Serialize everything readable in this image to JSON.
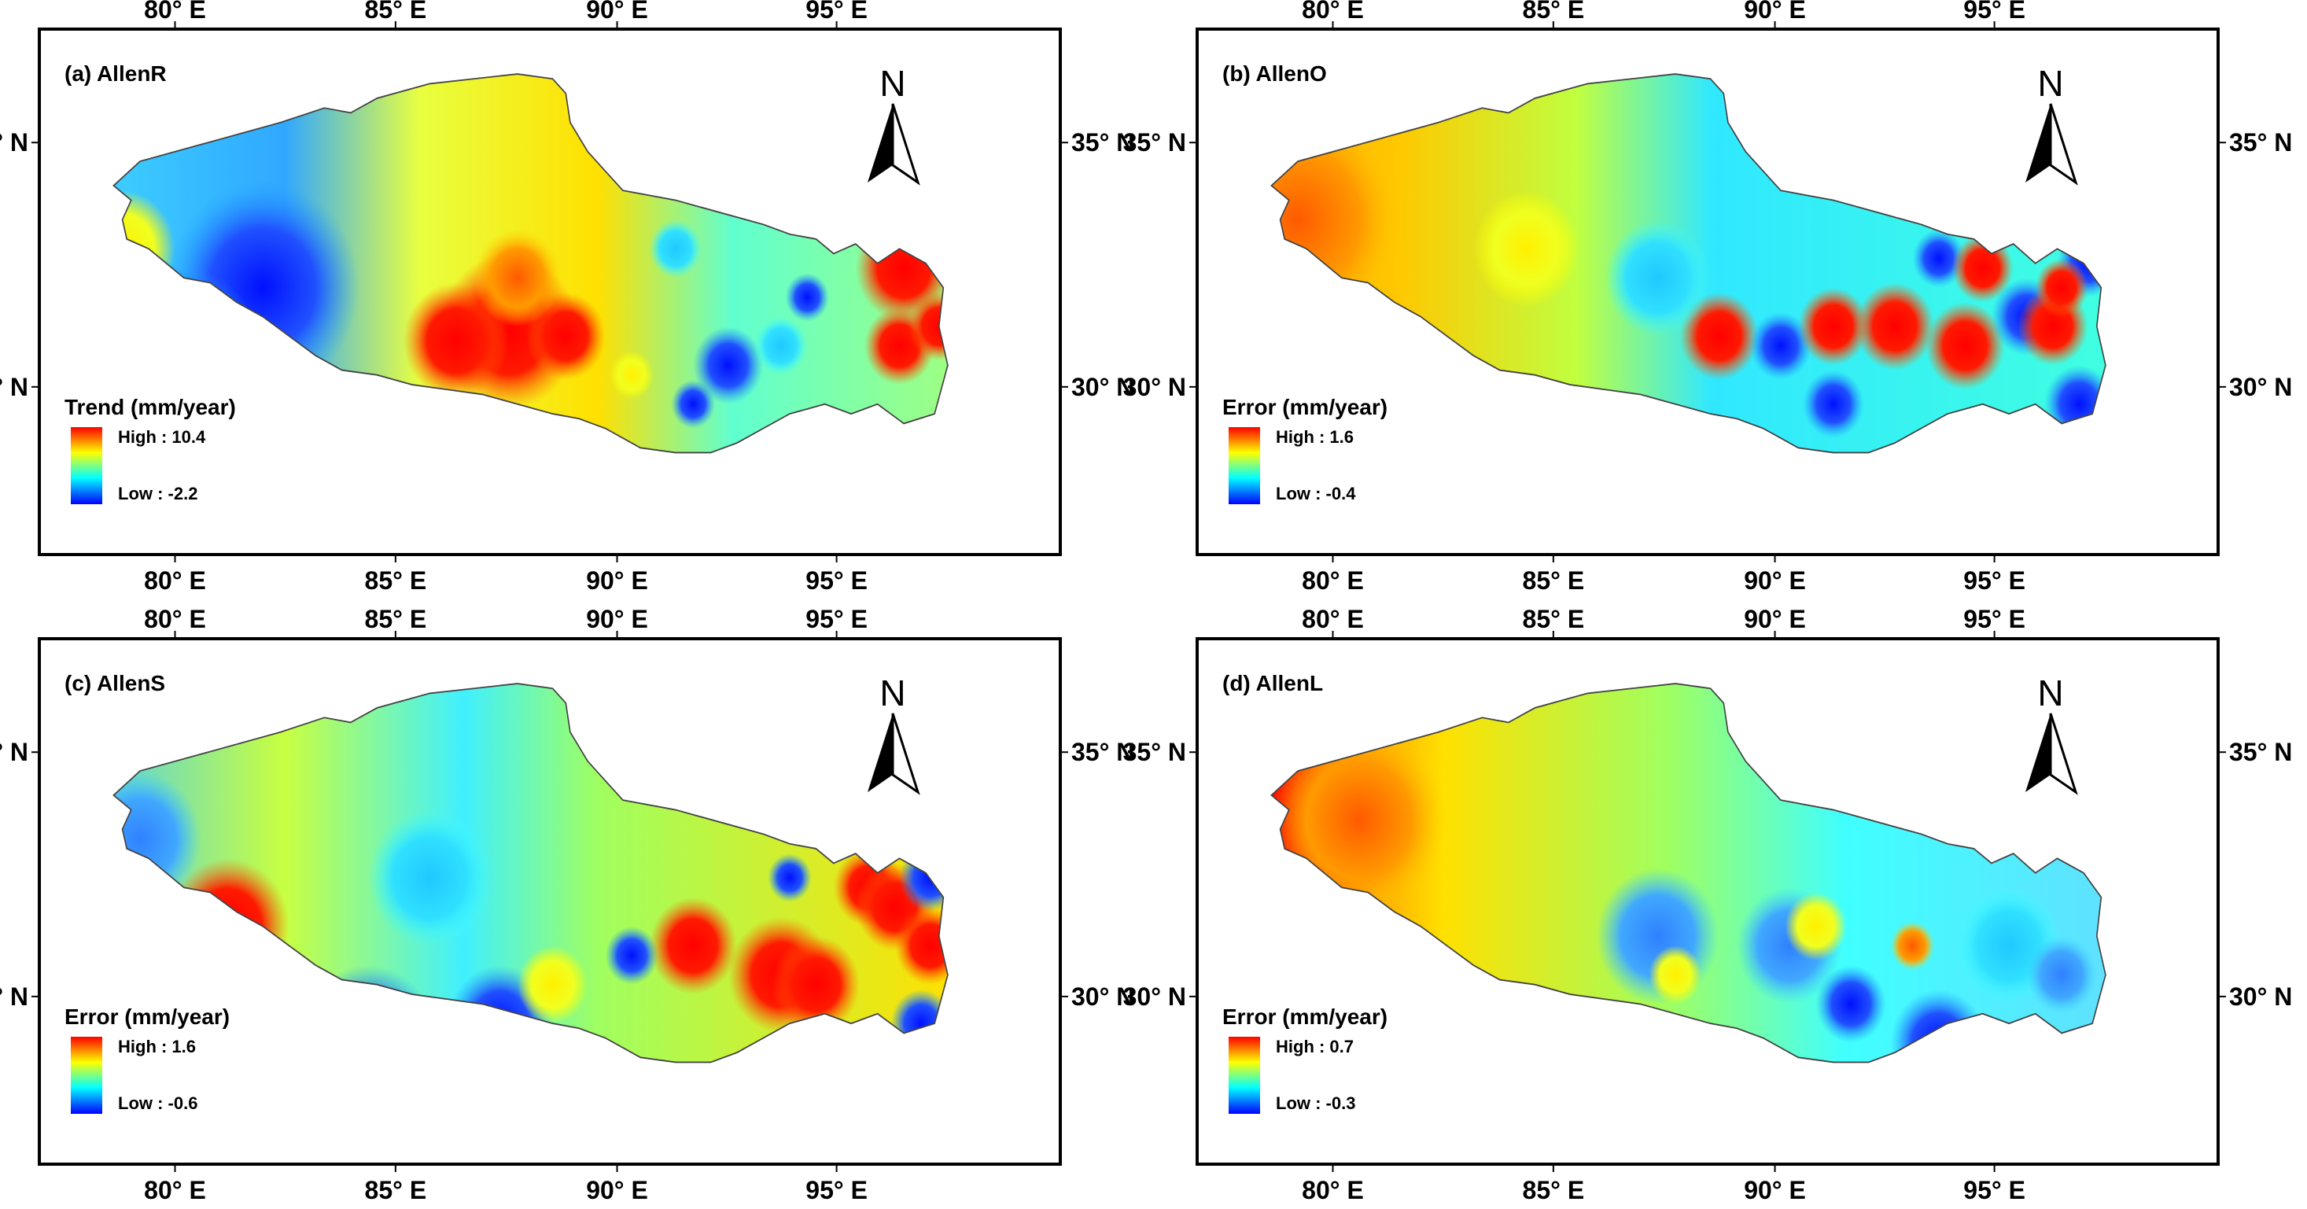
{
  "figure": {
    "x_ticks": [
      "80° E",
      "85° E",
      "90° E",
      "95° E"
    ],
    "y_ticks": [
      "35° N",
      "30° N"
    ],
    "north_letter": "N",
    "colors": {
      "ramp": [
        "#0000ff",
        "#00ffff",
        "#ffff00",
        "#ff0000"
      ],
      "outline": "#000000"
    },
    "panels": [
      {
        "label": "(a)  AllenR",
        "legend": {
          "title": "Trend (mm/year)",
          "high": "High : 10.4",
          "low": "Low : -2.2"
        }
      },
      {
        "label": "(b)  AllenO",
        "legend": {
          "title": "Error (mm/year)",
          "high": "High : 1.6",
          "low": "Low : -0.4"
        }
      },
      {
        "label": "(c)  AllenS",
        "legend": {
          "title": "Error (mm/year)",
          "high": "High : 1.6",
          "low": "Low : -0.6"
        }
      },
      {
        "label": "(d)  AllenL",
        "legend": {
          "title": "Error (mm/year)",
          "high": "High : 0.7",
          "low": "Low : -0.3"
        }
      }
    ]
  }
}
